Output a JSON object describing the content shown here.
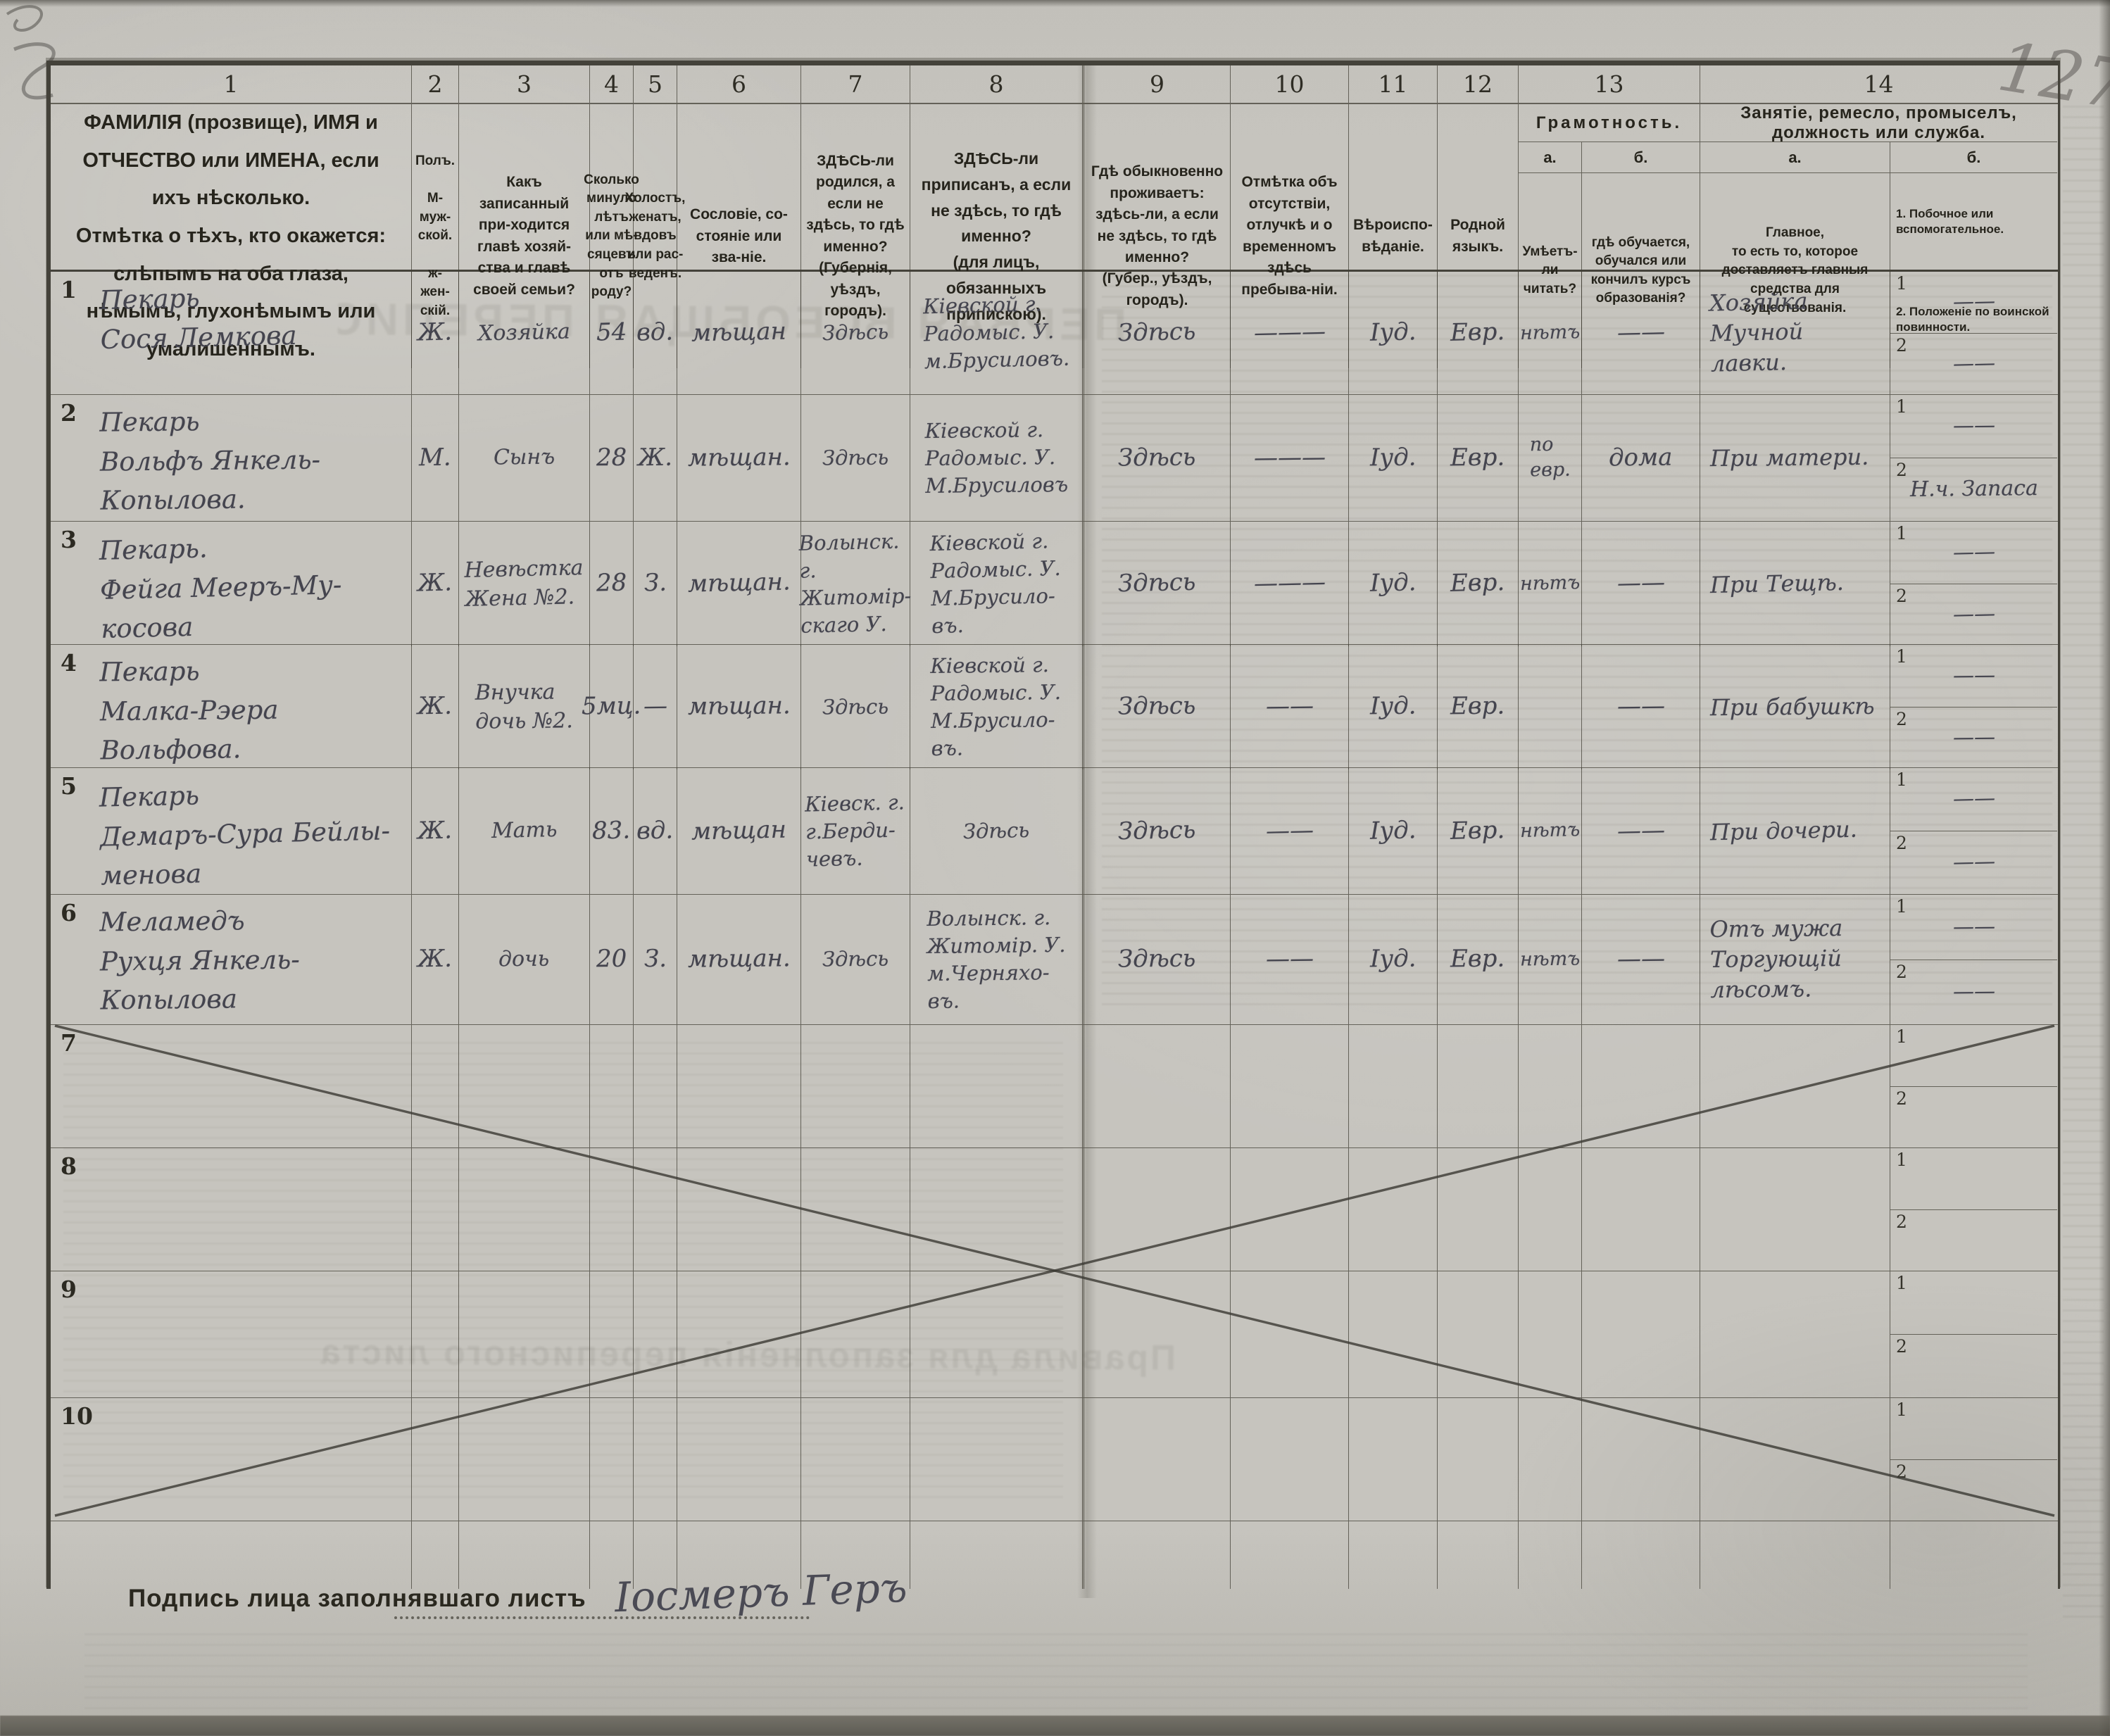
{
  "page": {
    "corner_number": "127",
    "signature_label": "Подпись лица заполнявшаго листъ",
    "signature_value": "Іосмеръ Геръ",
    "bleedthrough_title": "ПЕРВАЯ ВСЕОБЩАЯ ПЕРЕПИСЬ",
    "bleedthrough_footer": "Правила для заполненія переписного листа"
  },
  "table": {
    "sub1": "1",
    "sub2": "2",
    "numbers": [
      "1",
      "2",
      "3",
      "4",
      "5",
      "6",
      "7",
      "8",
      "9",
      "10",
      "11",
      "12",
      "13",
      "14"
    ],
    "h1a": "ФАМИЛІЯ (прозвище), ИМЯ и ОТЧЕСТВО или ИМЕНА, если ихъ нѣсколько.",
    "h1b": "Отмѣтка о тѣхъ, кто окажется: слѣпымъ на оба глаза, нѣмымъ, глухонѣмымъ или умалишеннымъ.",
    "h2": "Полъ.\n\nМ-муж-ской.\n\nж-жен-скій.",
    "h3": "Какъ записанный при-ходится главѣ хозяй-ства и главѣ своей семьи?",
    "h4": "Сколько минуло лѣтъ или мѣ-сяцевъ отъ роду?",
    "h5": "Холостъ, женатъ, вдовъ или рас-веденъ.",
    "h6": "Сословіе, со-стояніе или зва-ніе.",
    "h7": "ЗДѢСЬ-ли родился, а если не здѣсь, то гдѣ именно?\n(Губернія, уѣздъ, городъ).",
    "h8": "ЗДѢСЬ-ли приписанъ, а если не здѣсь, то гдѣ именно?\n(для лицъ, обязанныхъ припискою).",
    "h9": "Гдѣ обыкновенно проживаетъ: здѣсь-ли, а если не здѣсь, то гдѣ именно?\n(Губер., уѣздъ, городъ).",
    "h10": "Отмѣтка объ отсутствіи, отлучкѣ и о временномъ здѣсь пребыва-ніи.",
    "h11": "Вѣроиспо-вѣданіе.",
    "h12": "Родной языкъ.",
    "h13": "Грамотность.",
    "h13a_label": "а.",
    "h13b_label": "б.",
    "h13a": "Умѣетъ-ли читать?",
    "h13b": "гдѣ обучается, обучался или кончилъ курсъ образованія?",
    "h14": "Занятіе, ремесло, промыселъ, должность или служба.",
    "h14a_label": "а.",
    "h14b_label": "б.",
    "h14a": "Главное,\nто есть то, которое доставляетъ главныя средства для существованія.",
    "h14b1": "1. Побочное или вспомогательное.",
    "h14b2": "2. Положеніе по воинской повинности."
  },
  "rows": [
    {
      "no": "1",
      "c1": "Пекарь\nСося Лемкова",
      "c2": "Ж.",
      "c3": "Хозяйка",
      "c4": "54",
      "c5": "вд.",
      "c6": "мѣщан",
      "c7": "Здѣсь",
      "c8": "Кіевской г.\nРадомыс. У.\nм.Брусиловъ.",
      "c9": "Здѣсь",
      "c10": "———",
      "c11": "Іуд.",
      "c12": "Евр.",
      "c13a": "нѣтъ",
      "c13b": "——",
      "c14a": "Хозяйка\nМучной\nлавки.",
      "b1": "——",
      "b2": "——"
    },
    {
      "no": "2",
      "c1": "Пекарь\nВольфъ Янкель-\nКопылова.",
      "c2": "М.",
      "c3": "Сынъ",
      "c4": "28",
      "c5": "Ж.",
      "c6": "мѣщан.",
      "c7": "Здѣсь",
      "c8": "Кіевской г.\nРадомыс. У.\nМ.Брусиловъ",
      "c9": "Здѣсь",
      "c10": "———",
      "c11": "Іуд.",
      "c12": "Евр.",
      "c13a": "по\nевр.",
      "c13b": "дома",
      "c14a": "При матери.",
      "b1": "——",
      "b2": "Н.ч. Запаса"
    },
    {
      "no": "3",
      "c1": "Пекарь.\nФейга Мееръ-Му-\nкосова",
      "c2": "Ж.",
      "c3": "Невѣстка\nЖена №2.",
      "c4": "28",
      "c5": "З.",
      "c6": "мѣщан.",
      "c7": "Волынск. г.\nЖитомір-\nскаго У.",
      "c8": "Кіевской г.\nРадомыс. У.\nМ.Брусило-\nвъ.",
      "c9": "Здѣсь",
      "c10": "———",
      "c11": "Іуд.",
      "c12": "Евр.",
      "c13a": "нѣтъ",
      "c13b": "——",
      "c14a": "При Тещѣ.",
      "b1": "——",
      "b2": "——"
    },
    {
      "no": "4",
      "c1": "Пекарь\nМалка-Рэера\nВольфова.",
      "c2": "Ж.",
      "c3": "Внучка\nдочь №2.",
      "c4": "5мц.",
      "c5": "—",
      "c6": "мѣщан.",
      "c7": "Здѣсь",
      "c8": "Кіевской г.\nРадомыс. У.\nМ.Брусило-\nвъ.",
      "c9": "Здѣсь",
      "c10": "——",
      "c11": "Іуд.",
      "c12": "Евр.",
      "c13a": "",
      "c13b": "——",
      "c14a": "При бабушкѣ",
      "b1": "——",
      "b2": "——"
    },
    {
      "no": "5",
      "c1": "Пекарь\nДемаръ-Сура Бейлы-\nменова",
      "c2": "Ж.",
      "c3": "Мать",
      "c4": "83.",
      "c5": "вд.",
      "c6": "мѣщан",
      "c7": "Кіевск. г.\nг.Берди-\nчевъ.",
      "c8": "Здѣсь",
      "c9": "Здѣсь",
      "c10": "——",
      "c11": "Іуд.",
      "c12": "Евр.",
      "c13a": "нѣтъ",
      "c13b": "——",
      "c14a": "При дочери.",
      "b1": "——",
      "b2": "——"
    },
    {
      "no": "6",
      "c1": "Меламедъ\nРухця Янкель-\nКопылова",
      "c2": "Ж.",
      "c3": "дочь",
      "c4": "20",
      "c5": "З.",
      "c6": "мѣщан.",
      "c7": "Здѣсь",
      "c8": "Волынск. г.\nЖитомір. У.\nм.Черняхо-\nвъ.",
      "c9": "Здѣсь",
      "c10": "——",
      "c11": "Іуд.",
      "c12": "Евр.",
      "c13a": "нѣтъ",
      "c13b": "——",
      "c14a": "Отъ мужа\nТоргующій\nлѣсомъ.",
      "b1": "——",
      "b2": "——"
    },
    {
      "no": "7",
      "c1": "",
      "c2": "",
      "c3": "",
      "c4": "",
      "c5": "",
      "c6": "",
      "c7": "",
      "c8": "",
      "c9": "",
      "c10": "",
      "c11": "",
      "c12": "",
      "c13a": "",
      "c13b": "",
      "c14a": "",
      "b1": "",
      "b2": ""
    },
    {
      "no": "8",
      "c1": "",
      "c2": "",
      "c3": "",
      "c4": "",
      "c5": "",
      "c6": "",
      "c7": "",
      "c8": "",
      "c9": "",
      "c10": "",
      "c11": "",
      "c12": "",
      "c13a": "",
      "c13b": "",
      "c14a": "",
      "b1": "",
      "b2": ""
    },
    {
      "no": "9",
      "c1": "",
      "c2": "",
      "c3": "",
      "c4": "",
      "c5": "",
      "c6": "",
      "c7": "",
      "c8": "",
      "c9": "",
      "c10": "",
      "c11": "",
      "c12": "",
      "c13a": "",
      "c13b": "",
      "c14a": "",
      "b1": "",
      "b2": ""
    },
    {
      "no": "10",
      "c1": "",
      "c2": "",
      "c3": "",
      "c4": "",
      "c5": "",
      "c6": "",
      "c7": "",
      "c8": "",
      "c9": "",
      "c10": "",
      "c11": "",
      "c12": "",
      "c13a": "",
      "c13b": "",
      "c14a": "",
      "b1": "",
      "b2": ""
    }
  ]
}
